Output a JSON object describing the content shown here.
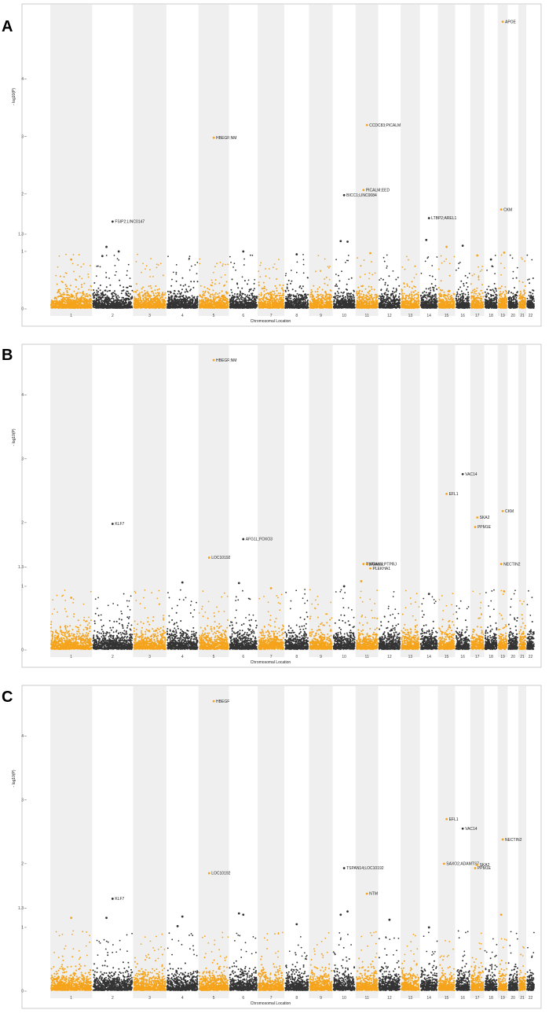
{
  "colors": {
    "orange": "#f5a31a",
    "dark": "#333333",
    "band": "#efefef",
    "frame": "#bfbfbf"
  },
  "chart_data": [
    {
      "type": "scatter",
      "panel": "A",
      "xlabel": "Chromosomal Location",
      "ylabel": "- log10(P)",
      "ylim": [
        0,
        5.2
      ],
      "y_ticks": [
        "0",
        "1",
        "1.3",
        "2",
        "3",
        "4"
      ],
      "y_tick_values": [
        0,
        1,
        1.3,
        2,
        3,
        4
      ],
      "chromosomes": [
        "1",
        "2",
        "3",
        "4",
        "5",
        "6",
        "7",
        "8",
        "9",
        "10",
        "11",
        "12",
        "13",
        "14",
        "15",
        "16",
        "17",
        "18",
        "19",
        "20",
        "21",
        "22"
      ],
      "points": [
        {
          "chr": 19,
          "y": 5.0,
          "label": "APOE"
        },
        {
          "chr": 11,
          "y": 3.2,
          "label": "CCDC83;PICALM"
        },
        {
          "chr": 5,
          "y": 2.98,
          "label": "HBEGF;NM"
        },
        {
          "chr": 11,
          "y": 2.07,
          "label": "PICALM;EED"
        },
        {
          "chr": 10,
          "y": 1.98,
          "label": "BICC1;LINC0084"
        },
        {
          "chr": 19,
          "y": 1.73,
          "label": "CKM"
        },
        {
          "chr": 14,
          "y": 1.58,
          "label": "LTBP2;AREL1"
        },
        {
          "chr": 2,
          "y": 1.52,
          "label": "FSIP2;LINC0147"
        },
        {
          "chr": 2,
          "y": 1.08
        },
        {
          "chr": 2,
          "y": 1.0
        },
        {
          "chr": 2,
          "y": 0.92
        },
        {
          "chr": 6,
          "y": 1.0
        },
        {
          "chr": 8,
          "y": 0.95
        },
        {
          "chr": 10,
          "y": 1.18
        },
        {
          "chr": 10,
          "y": 1.17
        },
        {
          "chr": 14,
          "y": 1.2
        },
        {
          "chr": 16,
          "y": 1.1
        },
        {
          "chr": 15,
          "y": 1.08
        },
        {
          "chr": 11,
          "y": 0.97
        },
        {
          "chr": 1,
          "y": 0.86
        },
        {
          "chr": 18,
          "y": 0.86
        },
        {
          "chr": 19,
          "y": 0.98
        },
        {
          "chr": 17,
          "y": 0.93
        }
      ]
    },
    {
      "type": "scatter",
      "panel": "B",
      "xlabel": "Chromosomal Location",
      "ylabel": "- log10(P)",
      "ylim": [
        0,
        4.7
      ],
      "y_ticks": [
        "0",
        "1",
        "1.3",
        "2",
        "3",
        "4"
      ],
      "y_tick_values": [
        0,
        1,
        1.3,
        2,
        3,
        4
      ],
      "chromosomes": [
        "1",
        "2",
        "3",
        "4",
        "5",
        "6",
        "7",
        "8",
        "9",
        "10",
        "11",
        "12",
        "13",
        "14",
        "15",
        "16",
        "17",
        "18",
        "19",
        "20",
        "21",
        "22"
      ],
      "points": [
        {
          "chr": 5,
          "y": 4.55,
          "label": "HBEGF;NM"
        },
        {
          "chr": 16,
          "y": 2.76,
          "label": "VAC14"
        },
        {
          "chr": 15,
          "y": 2.45,
          "label": "EFL1"
        },
        {
          "chr": 19,
          "y": 2.18,
          "label": "CKM"
        },
        {
          "chr": 17,
          "y": 2.08,
          "label": "SKA2"
        },
        {
          "chr": 2,
          "y": 1.98,
          "label": "KLF7"
        },
        {
          "chr": 17,
          "y": 1.93,
          "label": "PPM1E"
        },
        {
          "chr": 6,
          "y": 1.74,
          "label": "AFG1L;FOXO3"
        },
        {
          "chr": 5,
          "y": 1.45,
          "label": "LOC10192"
        },
        {
          "chr": 11,
          "y": 1.35,
          "label": "NCAM1"
        },
        {
          "chr": 11,
          "y": 1.35,
          "label": "TSPAN14;PTPRJ"
        },
        {
          "chr": 11,
          "y": 1.28,
          "label": "PLEKHA1"
        },
        {
          "chr": 19,
          "y": 1.35,
          "label": "NECTIN2"
        },
        {
          "chr": 4,
          "y": 1.06
        },
        {
          "chr": 6,
          "y": 1.05
        },
        {
          "chr": 10,
          "y": 1.0
        },
        {
          "chr": 11,
          "y": 1.08
        },
        {
          "chr": 14,
          "y": 0.88
        },
        {
          "chr": 19,
          "y": 0.92
        },
        {
          "chr": 7,
          "y": 0.97
        },
        {
          "chr": 1,
          "y": 0.82
        }
      ]
    },
    {
      "type": "scatter",
      "panel": "C",
      "xlabel": "Chromosomal Location",
      "ylabel": "- log10(P)",
      "ylim": [
        0,
        4.7
      ],
      "y_ticks": [
        "0",
        "1",
        "1.3",
        "2",
        "3",
        "4"
      ],
      "y_tick_values": [
        0,
        1,
        1.3,
        2,
        3,
        4
      ],
      "chromosomes": [
        "1",
        "2",
        "3",
        "4",
        "5",
        "6",
        "7",
        "8",
        "9",
        "10",
        "11",
        "12",
        "13",
        "14",
        "15",
        "16",
        "17",
        "18",
        "19",
        "20",
        "21",
        "22"
      ],
      "points": [
        {
          "chr": 5,
          "y": 4.55,
          "label": "HBEGF"
        },
        {
          "chr": 15,
          "y": 2.7,
          "label": "EFL1"
        },
        {
          "chr": 16,
          "y": 2.55,
          "label": "VAC14"
        },
        {
          "chr": 19,
          "y": 2.38,
          "label": "NECTIN2"
        },
        {
          "chr": 15,
          "y": 2.0,
          "label": "SAXO2;ADAMTS7"
        },
        {
          "chr": 17,
          "y": 1.98,
          "label": "SKA2"
        },
        {
          "chr": 17,
          "y": 1.93,
          "label": "PPM1E"
        },
        {
          "chr": 10,
          "y": 1.93,
          "label": "TSPAN14;LOC10192"
        },
        {
          "chr": 5,
          "y": 1.85,
          "label": "LOC10192"
        },
        {
          "chr": 11,
          "y": 1.53,
          "label": "NTM"
        },
        {
          "chr": 2,
          "y": 1.45,
          "label": "KLF7"
        },
        {
          "chr": 1,
          "y": 1.15
        },
        {
          "chr": 2,
          "y": 1.15
        },
        {
          "chr": 4,
          "y": 1.17
        },
        {
          "chr": 6,
          "y": 1.2
        },
        {
          "chr": 6,
          "y": 1.22
        },
        {
          "chr": 10,
          "y": 1.2
        },
        {
          "chr": 10,
          "y": 1.25
        },
        {
          "chr": 19,
          "y": 1.2
        },
        {
          "chr": 4,
          "y": 1.02
        },
        {
          "chr": 8,
          "y": 1.05
        },
        {
          "chr": 12,
          "y": 1.12
        },
        {
          "chr": 14,
          "y": 1.0
        }
      ]
    }
  ]
}
